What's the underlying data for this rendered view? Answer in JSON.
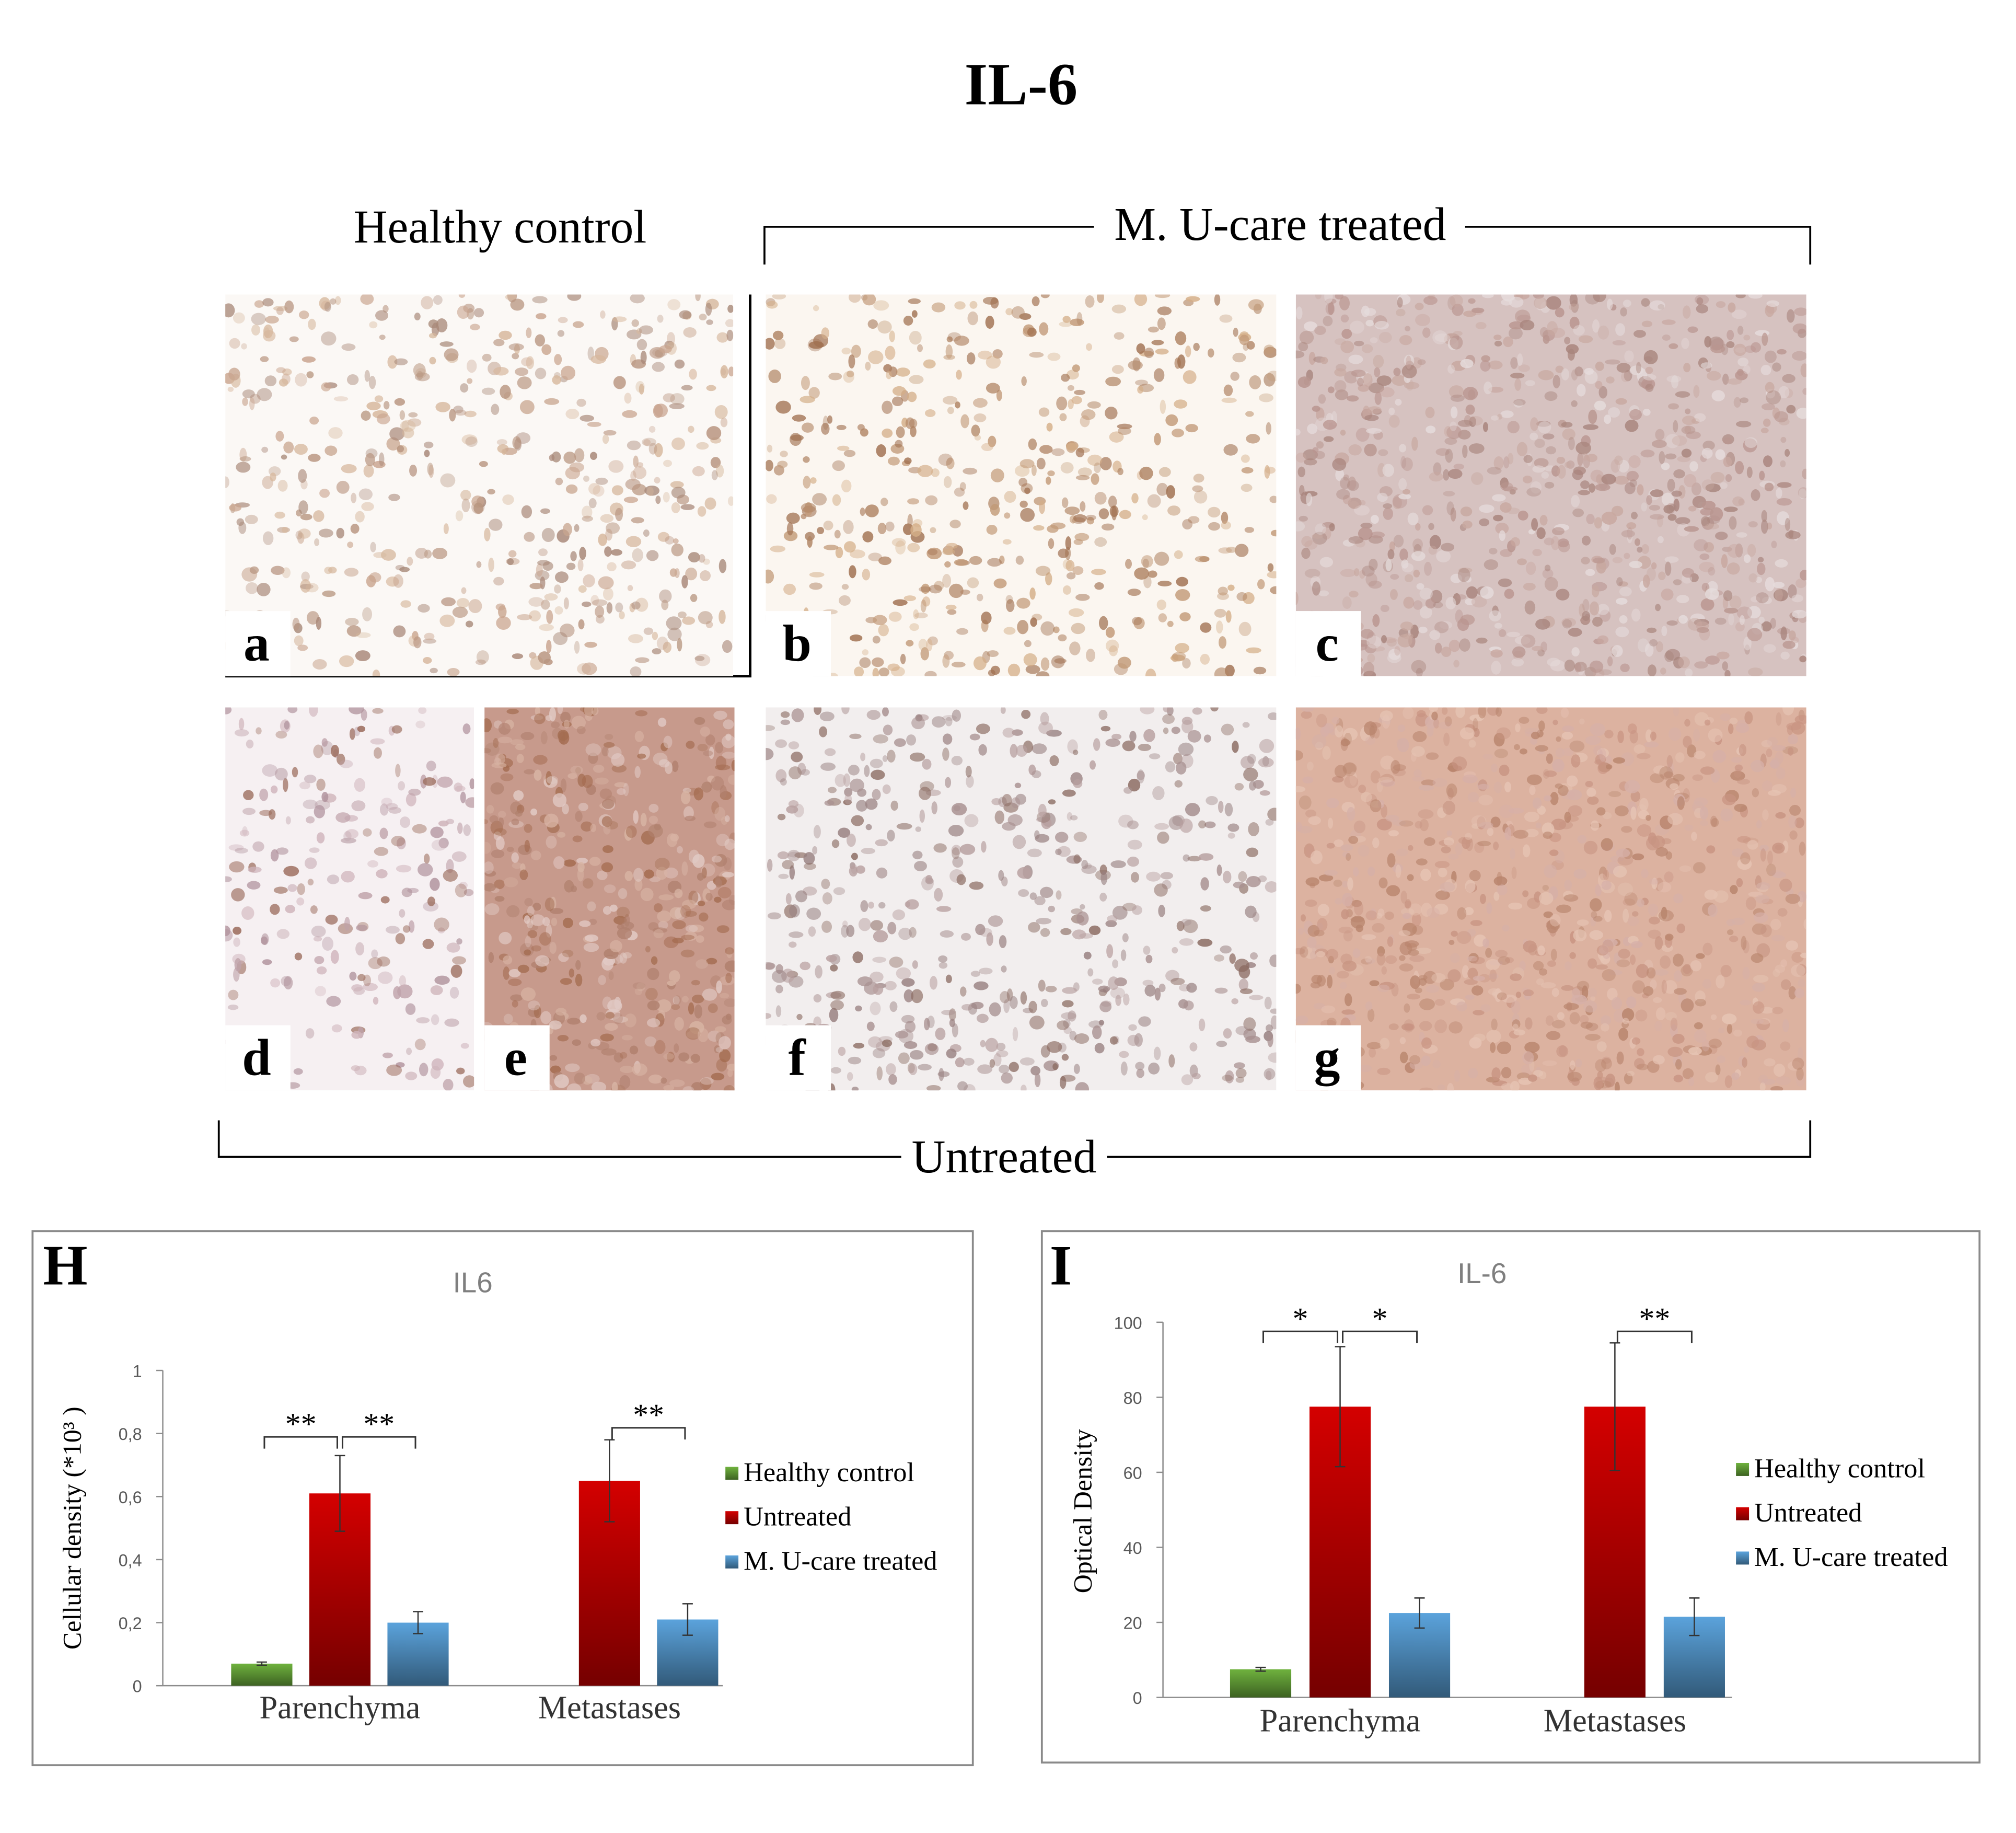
{
  "title": "IL-6",
  "groups": {
    "healthy": "Healthy control",
    "treated": "M. U-care treated",
    "untreated": "Untreated"
  },
  "panels": [
    "a",
    "b",
    "c",
    "d",
    "e",
    "f",
    "g"
  ],
  "chart_data": [
    {
      "type": "bar",
      "panel_label": "H",
      "title": "IL6",
      "y_label": "Cellular density (*10³ )",
      "categories": [
        "Parenchyma",
        "Metastases"
      ],
      "series": [
        {
          "name": "Healthy control",
          "color": "#6fb23e",
          "values": [
            0.07,
            null
          ],
          "errors": [
            0.005,
            null
          ]
        },
        {
          "name": "Untreated",
          "color": "#d40000",
          "values": [
            0.61,
            0.65
          ],
          "errors": [
            0.12,
            0.13
          ]
        },
        {
          "name": "M. U-care treated",
          "color": "#5ba3dc",
          "values": [
            0.2,
            0.21
          ],
          "errors": [
            0.035,
            0.05
          ]
        }
      ],
      "ylim": [
        0,
        1
      ],
      "yticks": [
        0,
        {
          "value": 0.2,
          "label": "0,2"
        },
        {
          "value": 0.4,
          "label": "0,4"
        },
        {
          "value": 0.6,
          "label": "0,6"
        },
        {
          "value": 0.8,
          "label": "0,8"
        },
        1
      ],
      "annotations": [
        "**",
        "**",
        "**"
      ]
    },
    {
      "type": "bar",
      "panel_label": "I",
      "title": "IL-6",
      "y_label": "Optical Density",
      "categories": [
        "Parenchyma",
        "Metastases"
      ],
      "series": [
        {
          "name": "Healthy control",
          "color": "#6fb23e",
          "values": [
            7.5,
            null
          ],
          "errors": [
            0.5,
            null
          ]
        },
        {
          "name": "Untreated",
          "color": "#d40000",
          "values": [
            77.5,
            77.5
          ],
          "errors": [
            16,
            17
          ]
        },
        {
          "name": "M. U-care treated",
          "color": "#5ba3dc",
          "values": [
            22.5,
            21.5
          ],
          "errors": [
            4,
            5
          ]
        }
      ],
      "ylim": [
        0,
        100
      ],
      "yticks": [
        0,
        20,
        40,
        60,
        80,
        100
      ],
      "annotations": [
        "*",
        "*",
        "**"
      ]
    }
  ]
}
